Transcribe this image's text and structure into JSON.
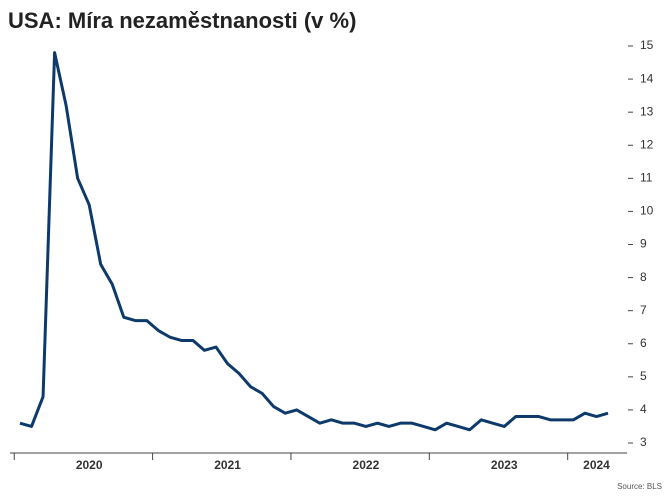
{
  "chart_data": {
    "type": "line",
    "title": "USA: Míra nezaměstnanosti (v %)",
    "source": "Source: BLS",
    "categories": [
      null,
      null,
      null,
      null,
      null,
      null,
      "2020",
      null,
      null,
      null,
      null,
      null,
      null,
      null,
      null,
      null,
      null,
      null,
      "2021",
      null,
      null,
      null,
      null,
      null,
      null,
      null,
      null,
      null,
      null,
      null,
      "2022",
      null,
      null,
      null,
      null,
      null,
      null,
      null,
      null,
      null,
      null,
      null,
      "2023",
      null,
      null,
      null,
      null,
      null,
      null,
      null,
      "2024",
      null
    ],
    "series": [
      {
        "name": "Míra nezaměstnanosti",
        "color": "#0d3a6b",
        "values": [
          3.6,
          3.5,
          4.4,
          14.8,
          13.2,
          11.0,
          10.2,
          8.4,
          7.8,
          6.8,
          6.7,
          6.7,
          6.4,
          6.2,
          6.1,
          6.1,
          5.8,
          5.9,
          5.4,
          5.1,
          4.7,
          4.5,
          4.1,
          3.9,
          4.0,
          3.8,
          3.6,
          3.7,
          3.6,
          3.6,
          3.5,
          3.6,
          3.5,
          3.6,
          3.6,
          3.5,
          3.4,
          3.6,
          3.5,
          3.4,
          3.7,
          3.6,
          3.5,
          3.8,
          3.8,
          3.8,
          3.7,
          3.7,
          3.7,
          3.9,
          3.8,
          3.9
        ]
      }
    ],
    "ylim": [
      3,
      15
    ],
    "yticks": [
      3,
      4,
      5,
      6,
      7,
      8,
      9,
      10,
      11,
      12,
      13,
      14,
      15
    ]
  }
}
